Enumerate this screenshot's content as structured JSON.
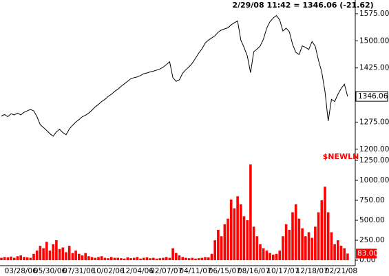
{
  "chart_data": [
    {
      "type": "line",
      "title": "2/29/08 11:42 = 1346.06 (-21.62)",
      "color": "#000000",
      "values": [
        1292,
        1296,
        1290,
        1298,
        1295,
        1300,
        1295,
        1302,
        1306,
        1310,
        1306,
        1290,
        1268,
        1260,
        1252,
        1243,
        1236,
        1248,
        1255,
        1246,
        1240,
        1256,
        1266,
        1275,
        1282,
        1290,
        1294,
        1300,
        1308,
        1317,
        1324,
        1332,
        1338,
        1346,
        1352,
        1360,
        1366,
        1374,
        1381,
        1388,
        1395,
        1398,
        1400,
        1404,
        1409,
        1411,
        1414,
        1416,
        1419,
        1422,
        1427,
        1434,
        1442,
        1398,
        1388,
        1392,
        1410,
        1420,
        1428,
        1438,
        1452,
        1466,
        1478,
        1494,
        1502,
        1508,
        1514,
        1524,
        1530,
        1533,
        1536,
        1544,
        1550,
        1555,
        1502,
        1482,
        1458,
        1412,
        1470,
        1477,
        1486,
        1505,
        1535,
        1553,
        1563,
        1570,
        1558,
        1527,
        1535,
        1525,
        1490,
        1468,
        1462,
        1486,
        1482,
        1476,
        1498,
        1485,
        1446,
        1414,
        1360,
        1278,
        1338,
        1332,
        1352,
        1368,
        1380,
        1346.06
      ],
      "ylim": [
        1190,
        1613
      ],
      "yticks": [
        {
          "value": 1200,
          "label": "1200.00"
        },
        {
          "value": 1275,
          "label": "1275.00"
        },
        {
          "value": 1425,
          "label": "1425.00"
        },
        {
          "value": 1500,
          "label": "1500.00"
        },
        {
          "value": 1575,
          "label": "1575.00"
        }
      ]
    },
    {
      "type": "bar",
      "title": "$NEWLN",
      "color": "#ff0000",
      "categories": [
        null,
        null,
        null,
        null,
        null,
        null,
        "03/28/06",
        null,
        null,
        null,
        null,
        null,
        null,
        null,
        null,
        "05/30/06",
        null,
        null,
        null,
        null,
        null,
        null,
        null,
        null,
        "07/31/06",
        null,
        null,
        null,
        null,
        null,
        null,
        null,
        null,
        "10/02/06",
        null,
        null,
        null,
        null,
        null,
        null,
        null,
        null,
        "12/04/06",
        null,
        null,
        null,
        null,
        null,
        null,
        null,
        null,
        "02/07/07",
        null,
        null,
        null,
        null,
        null,
        null,
        null,
        null,
        "04/11/07",
        null,
        null,
        null,
        null,
        null,
        null,
        null,
        null,
        "06/15/07",
        null,
        null,
        null,
        null,
        null,
        null,
        null,
        null,
        "08/16/07",
        null,
        null,
        null,
        null,
        null,
        null,
        null,
        null,
        "10/17/07",
        null,
        null,
        null,
        null,
        null,
        null,
        null,
        null,
        "12/18/07",
        null,
        null,
        null,
        null,
        null,
        null,
        null,
        null,
        "02/21/08",
        null,
        null
      ],
      "values": [
        30,
        40,
        35,
        45,
        30,
        50,
        60,
        40,
        35,
        30,
        80,
        120,
        180,
        150,
        230,
        120,
        200,
        250,
        140,
        160,
        100,
        180,
        90,
        120,
        80,
        60,
        90,
        50,
        40,
        30,
        40,
        50,
        30,
        25,
        40,
        30,
        30,
        25,
        20,
        35,
        25,
        30,
        40,
        20,
        30,
        35,
        25,
        30,
        20,
        25,
        30,
        40,
        30,
        150,
        90,
        60,
        40,
        30,
        25,
        30,
        20,
        25,
        30,
        40,
        35,
        80,
        250,
        380,
        300,
        450,
        520,
        760,
        650,
        800,
        700,
        550,
        500,
        1200,
        420,
        300,
        200,
        150,
        120,
        90,
        70,
        80,
        120,
        300,
        450,
        380,
        600,
        700,
        520,
        400,
        300,
        350,
        280,
        420,
        600,
        750,
        920,
        600,
        350,
        200,
        250,
        180,
        150,
        83
      ],
      "value_labels": [
        null,
        null,
        null,
        null,
        null,
        null,
        null,
        null,
        null,
        null,
        null,
        null,
        null,
        null,
        null,
        null,
        null,
        null,
        null,
        null,
        null,
        null,
        null,
        null,
        null,
        null,
        null,
        null,
        null,
        null,
        null,
        null,
        null,
        null,
        null,
        null,
        null,
        null,
        null,
        null,
        null,
        null,
        null,
        null,
        null,
        null,
        null,
        null,
        null,
        null,
        null,
        null,
        null,
        null,
        null,
        null,
        null,
        null,
        null,
        null,
        null,
        null,
        null,
        null,
        null,
        null,
        null,
        null,
        null,
        null,
        null,
        null,
        null,
        null,
        null,
        null,
        null,
        null,
        null,
        null,
        null,
        null,
        null,
        null,
        null,
        null,
        null,
        null,
        null,
        null,
        null,
        null,
        null,
        null,
        null,
        null,
        null,
        null,
        null,
        null,
        null,
        null,
        null,
        null,
        null,
        null,
        null,
        "83.00"
      ],
      "ylim": [
        -60,
        1345
      ],
      "yticks": [
        {
          "value": 0,
          "label": "0.00"
        },
        {
          "value": 250,
          "label": "250.00"
        },
        {
          "value": 500,
          "label": "500.00"
        },
        {
          "value": 750,
          "label": "750.00"
        },
        {
          "value": 1000,
          "label": "1000.00"
        },
        {
          "value": 1250,
          "label": "1250.00"
        }
      ]
    }
  ]
}
